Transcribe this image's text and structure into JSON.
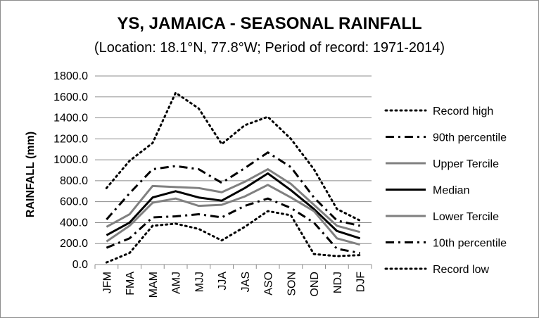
{
  "chart_data": {
    "type": "line",
    "title": "YS, JAMAICA - SEASONAL RAINFALL",
    "subtitle": "(Location: 18.1°N, 77.8°W; Period of record: 1971-2014)",
    "xlabel": "",
    "ylabel": "RAINFALL (mm)",
    "ylim": [
      0,
      1800
    ],
    "y_ticks": [
      "0.0",
      "200.0",
      "400.0",
      "600.0",
      "800.0",
      "1000.0",
      "1200.0",
      "1400.0",
      "1600.0",
      "1800.0"
    ],
    "categories": [
      "JFM",
      "FMA",
      "MAM",
      "AMJ",
      "MJJ",
      "JJA",
      "JAS",
      "ASO",
      "SON",
      "OND",
      "NDJ",
      "DJF"
    ],
    "grid": true,
    "legend_position": "right",
    "series": [
      {
        "name": "Record high",
        "style": "dotted",
        "color": "#000000",
        "values": [
          730,
          990,
          1160,
          1640,
          1490,
          1150,
          1330,
          1410,
          1200,
          910,
          530,
          420
        ]
      },
      {
        "name": "90th percentile",
        "style": "dash-dot",
        "color": "#000000",
        "values": [
          430,
          680,
          910,
          940,
          910,
          780,
          920,
          1070,
          930,
          640,
          420,
          370
        ]
      },
      {
        "name": "Upper Tercile",
        "style": "solid",
        "color": "#808080",
        "values": [
          360,
          480,
          750,
          740,
          730,
          690,
          790,
          910,
          770,
          570,
          370,
          310
        ]
      },
      {
        "name": "Median",
        "style": "solid",
        "color": "#000000",
        "values": [
          280,
          400,
          640,
          700,
          640,
          610,
          730,
          870,
          710,
          530,
          320,
          250
        ]
      },
      {
        "name": "Lower Tercile",
        "style": "solid",
        "color": "#808080",
        "values": [
          220,
          370,
          590,
          630,
          560,
          570,
          650,
          760,
          640,
          510,
          250,
          190
        ]
      },
      {
        "name": "10th percentile",
        "style": "dash-dot",
        "color": "#000000",
        "values": [
          160,
          250,
          450,
          460,
          480,
          450,
          560,
          630,
          540,
          400,
          150,
          110
        ]
      },
      {
        "name": "Record low",
        "style": "dotted",
        "color": "#000000",
        "values": [
          20,
          110,
          370,
          390,
          340,
          230,
          360,
          510,
          470,
          100,
          80,
          90
        ]
      }
    ]
  }
}
